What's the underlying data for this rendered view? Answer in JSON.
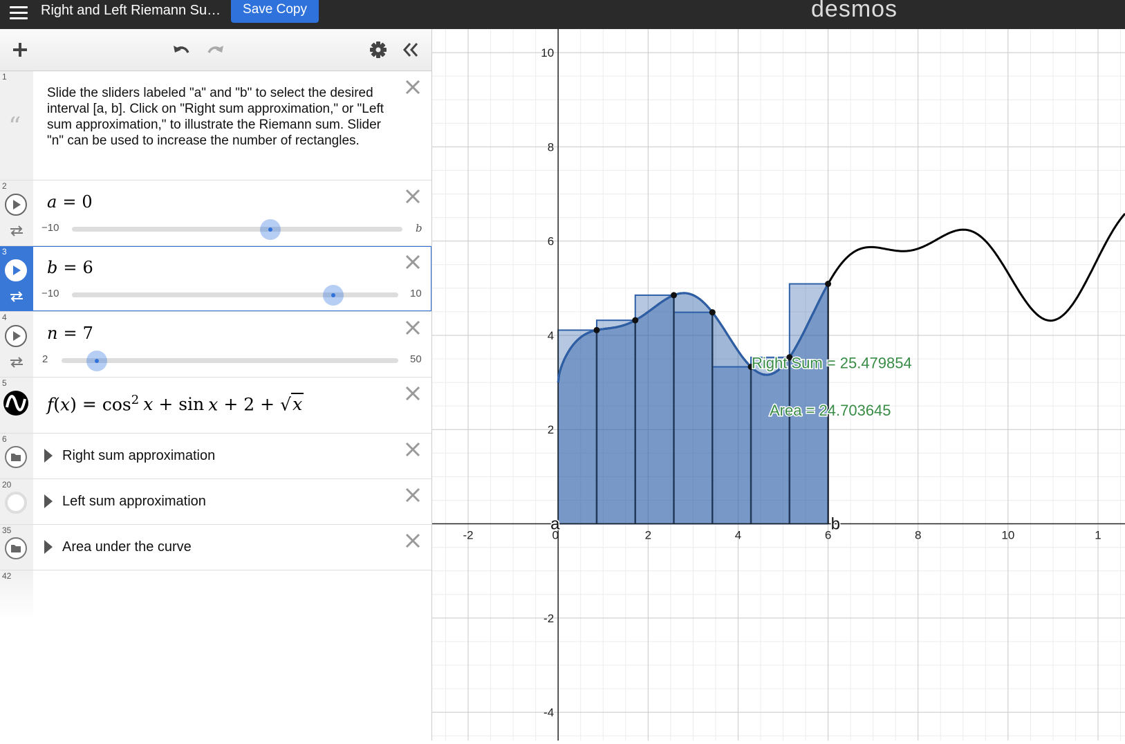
{
  "app": {
    "title": "Right and Left Riemann Su…",
    "save_label": "Save Copy",
    "logo": "desmos"
  },
  "expressions": {
    "note": {
      "index": "1",
      "text": "Slide the sliders labeled \"a\" and \"b\" to select the desired interval [a, b]. Click on \"Right sum approximation,\" or \"Left sum approximation,\"  to illustrate the Riemann sum. Slider \"n\" can be used to increase the number of rectangles."
    },
    "slider_a": {
      "index": "2",
      "var": "a",
      "value": "0",
      "min": "−10",
      "max": "b",
      "position": 0.6
    },
    "slider_b": {
      "index": "3",
      "var": "b",
      "value": "6",
      "min": "−10",
      "max": "10",
      "position": 0.8
    },
    "slider_n": {
      "index": "4",
      "var": "n",
      "value": "7",
      "min": "2",
      "max": "50",
      "position": 0.104
    },
    "function": {
      "index": "5",
      "lhs": "f",
      "arg": "x",
      "cos": "cos",
      "sin": "sin",
      "exp": "2",
      "const": "2"
    },
    "folders": [
      {
        "index": "6",
        "label": "Right sum approximation"
      },
      {
        "index": "20",
        "label": "Left sum approximation"
      },
      {
        "index": "35",
        "label": "Area under the curve"
      }
    ],
    "empty_index": "42"
  },
  "graph": {
    "x_ticks": [
      "-2",
      "2",
      "4",
      "6",
      "8",
      "10",
      "1"
    ],
    "y_ticks": [
      "10",
      "8",
      "6",
      "4",
      "2",
      "-2",
      "-4"
    ],
    "origin_label": "0",
    "point_a_label": "a",
    "point_b_label": "b",
    "right_sum_label": "Right Sum = 25.479854",
    "area_label": "Area = 24.703645",
    "colors": {
      "curve": "#000000",
      "fill": "#2d5fa8",
      "accent": "#388c46"
    }
  },
  "chart_data": {
    "type": "area",
    "function": "f(x) = cos^2 x + sin x + 2 + sqrt(x)",
    "interval": [
      0,
      6
    ],
    "n": 7,
    "right_sum": 25.479854,
    "area": 24.703645,
    "xlim": [
      -2.8,
      12.6
    ],
    "ylim": [
      -4.6,
      10.5
    ],
    "grid": true
  }
}
